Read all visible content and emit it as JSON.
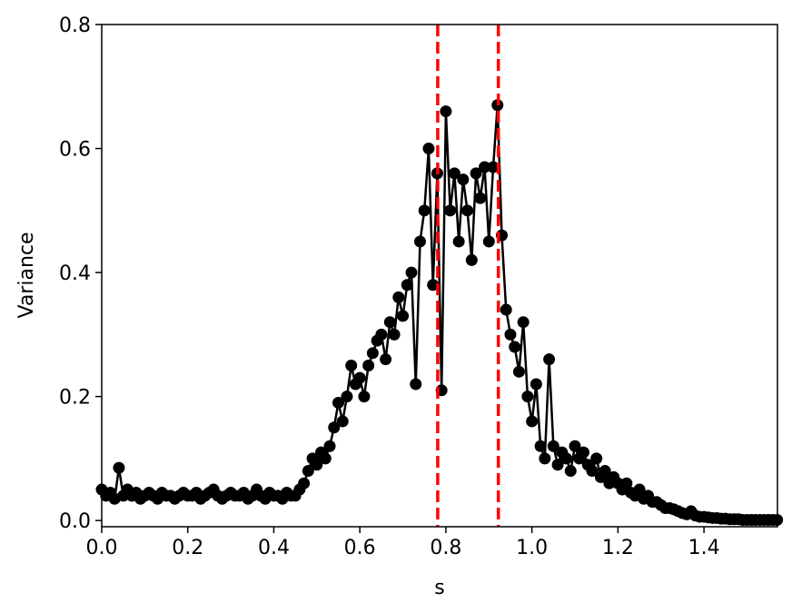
{
  "chart_data": {
    "type": "line",
    "xlabel": "s",
    "ylabel": "Variance",
    "x": [
      0.0,
      0.01,
      0.02,
      0.03,
      0.04,
      0.05,
      0.06,
      0.07,
      0.08,
      0.09,
      0.1,
      0.11,
      0.12,
      0.13,
      0.14,
      0.15,
      0.16,
      0.17,
      0.18,
      0.19,
      0.2,
      0.21,
      0.22,
      0.23,
      0.24,
      0.25,
      0.26,
      0.27,
      0.28,
      0.29,
      0.3,
      0.31,
      0.32,
      0.33,
      0.34,
      0.35,
      0.36,
      0.37,
      0.38,
      0.39,
      0.4,
      0.41,
      0.42,
      0.43,
      0.44,
      0.45,
      0.46,
      0.47,
      0.48,
      0.49,
      0.5,
      0.51,
      0.52,
      0.53,
      0.54,
      0.55,
      0.56,
      0.57,
      0.58,
      0.59,
      0.6,
      0.61,
      0.62,
      0.63,
      0.64,
      0.65,
      0.66,
      0.67,
      0.68,
      0.69,
      0.7,
      0.71,
      0.72,
      0.73,
      0.74,
      0.75,
      0.76,
      0.77,
      0.78,
      0.79,
      0.8,
      0.81,
      0.82,
      0.83,
      0.84,
      0.85,
      0.86,
      0.87,
      0.88,
      0.89,
      0.9,
      0.91,
      0.92,
      0.93,
      0.94,
      0.95,
      0.96,
      0.97,
      0.98,
      0.99,
      1.0,
      1.01,
      1.02,
      1.03,
      1.04,
      1.05,
      1.06,
      1.07,
      1.08,
      1.09,
      1.1,
      1.11,
      1.12,
      1.13,
      1.14,
      1.15,
      1.16,
      1.17,
      1.18,
      1.19,
      1.2,
      1.21,
      1.22,
      1.23,
      1.24,
      1.25,
      1.26,
      1.27,
      1.28,
      1.29,
      1.3,
      1.31,
      1.32,
      1.33,
      1.34,
      1.35,
      1.36,
      1.37,
      1.38,
      1.39,
      1.4,
      1.41,
      1.42,
      1.43,
      1.44,
      1.45,
      1.46,
      1.47,
      1.48,
      1.49,
      1.5,
      1.51,
      1.52,
      1.53,
      1.54,
      1.55,
      1.56,
      1.57
    ],
    "series": [
      {
        "color": "#000000",
        "values": [
          0.05,
          0.04,
          0.045,
          0.035,
          0.085,
          0.04,
          0.05,
          0.04,
          0.045,
          0.035,
          0.04,
          0.045,
          0.04,
          0.035,
          0.045,
          0.04,
          0.04,
          0.035,
          0.04,
          0.045,
          0.04,
          0.04,
          0.045,
          0.035,
          0.04,
          0.045,
          0.05,
          0.04,
          0.035,
          0.04,
          0.045,
          0.04,
          0.04,
          0.045,
          0.035,
          0.04,
          0.05,
          0.04,
          0.035,
          0.045,
          0.04,
          0.04,
          0.035,
          0.045,
          0.04,
          0.04,
          0.05,
          0.06,
          0.08,
          0.1,
          0.09,
          0.11,
          0.1,
          0.12,
          0.15,
          0.19,
          0.16,
          0.2,
          0.25,
          0.22,
          0.23,
          0.2,
          0.25,
          0.27,
          0.29,
          0.3,
          0.26,
          0.32,
          0.3,
          0.36,
          0.33,
          0.38,
          0.4,
          0.22,
          0.45,
          0.5,
          0.6,
          0.38,
          0.56,
          0.21,
          0.66,
          0.5,
          0.56,
          0.45,
          0.55,
          0.5,
          0.42,
          0.56,
          0.52,
          0.57,
          0.45,
          0.57,
          0.67,
          0.46,
          0.34,
          0.3,
          0.28,
          0.24,
          0.32,
          0.2,
          0.16,
          0.22,
          0.12,
          0.1,
          0.26,
          0.12,
          0.09,
          0.11,
          0.1,
          0.08,
          0.12,
          0.1,
          0.11,
          0.09,
          0.08,
          0.1,
          0.07,
          0.08,
          0.06,
          0.07,
          0.06,
          0.05,
          0.06,
          0.045,
          0.04,
          0.05,
          0.035,
          0.04,
          0.03,
          0.03,
          0.025,
          0.02,
          0.02,
          0.018,
          0.015,
          0.012,
          0.01,
          0.015,
          0.008,
          0.006,
          0.006,
          0.005,
          0.004,
          0.004,
          0.003,
          0.003,
          0.002,
          0.002,
          0.002,
          0.001,
          0.001,
          0.001,
          0.001,
          0.001,
          0.001,
          0.001,
          0.001,
          0.001
        ]
      }
    ],
    "vlines": [
      {
        "x": 0.781,
        "color": "#ff0000"
      },
      {
        "x": 0.922,
        "color": "#ff0000"
      }
    ],
    "xlim": [
      0,
      1.5708
    ],
    "ylim": [
      -0.01,
      0.8
    ],
    "xticks": [
      {
        "value": 0,
        "label": "0.0"
      },
      0.2,
      0.4,
      0.6,
      0.8,
      {
        "value": 1,
        "label": "1.0"
      },
      1.2,
      1.4
    ],
    "yticks": [
      {
        "value": 0,
        "label": "0.0"
      },
      0.2,
      0.4,
      0.6,
      0.8
    ]
  }
}
